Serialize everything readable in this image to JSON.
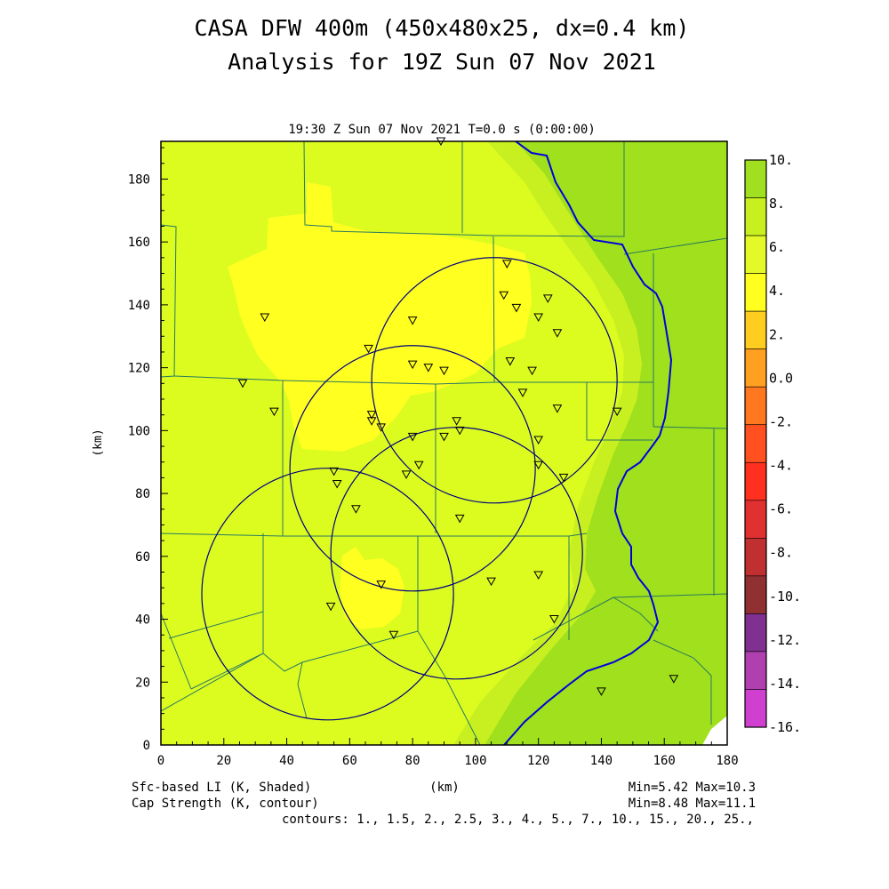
{
  "header": {
    "title_line1": "CASA DFW 400m (450x480x25, dx=0.4 km)",
    "title_line2": "Analysis for 19Z Sun 07 Nov 2021",
    "plot_label": "19:30 Z Sun 07 Nov 2021    T=0.0 s (0:00:00)"
  },
  "axes": {
    "x_ticks": [
      "0",
      "20",
      "40",
      "60",
      "80",
      "100",
      "120",
      "140",
      "160",
      "180"
    ],
    "y_ticks": [
      "0",
      "20",
      "40",
      "60",
      "80",
      "100",
      "120",
      "140",
      "160",
      "180"
    ],
    "x_unit": "(km)",
    "y_unit": "(km)"
  },
  "colorbar": {
    "labels": [
      "10.",
      "8.",
      "6.",
      "4.",
      "2.",
      "0.0",
      "-2.",
      "-4.",
      "-6.",
      "-8.",
      "-10.",
      "-12.",
      "-14.",
      "-16."
    ],
    "colors": [
      "#a0e020",
      "#c8f020",
      "#e4fa28",
      "#ffff20",
      "#ffcc20",
      "#ffa020",
      "#ff7820",
      "#ff5020",
      "#ff3020",
      "#e03030",
      "#c03030",
      "#903030",
      "#803090",
      "#b040b0",
      "#d040d0"
    ]
  },
  "footer": {
    "field1": "Sfc-based LI (K, Shaded)",
    "field2": "Cap Strength (K, contour)",
    "range1": "Min=5.42 Max=10.3",
    "range2": "Min=8.48 Max=11.1",
    "contours": "contours: 1., 1.5, 2., 2.5, 3., 4., 5., 7., 10., 15., 20., 25.,",
    "x_unit": "(km)"
  },
  "map": {
    "colors": {
      "green": "#a0e01c",
      "limegreen": "#c8f020",
      "yellowgreen": "#dcfc20",
      "yellow": "#ffff20",
      "boundary": "#2a7a60",
      "river": "#0000dd",
      "radar": "#000080"
    },
    "radar_circles": [
      {
        "cx": 106,
        "cy": 116,
        "r": 39
      },
      {
        "cx": 80,
        "cy": 88,
        "r": 39
      },
      {
        "cx": 94,
        "cy": 61,
        "r": 40
      },
      {
        "cx": 53,
        "cy": 48,
        "r": 40
      }
    ],
    "stations": [
      [
        89,
        192
      ],
      [
        110,
        153
      ],
      [
        109,
        143
      ],
      [
        113,
        139
      ],
      [
        120,
        136
      ],
      [
        123,
        142
      ],
      [
        126,
        131
      ],
      [
        80,
        135
      ],
      [
        33,
        136
      ],
      [
        66,
        126
      ],
      [
        80,
        121
      ],
      [
        85,
        120
      ],
      [
        90,
        119
      ],
      [
        111,
        122
      ],
      [
        118,
        119
      ],
      [
        115,
        112
      ],
      [
        126,
        107
      ],
      [
        26,
        115
      ],
      [
        36,
        106
      ],
      [
        67,
        105
      ],
      [
        67,
        103
      ],
      [
        70,
        101
      ],
      [
        94,
        103
      ],
      [
        80,
        98
      ],
      [
        90,
        98
      ],
      [
        95,
        100
      ],
      [
        120,
        97
      ],
      [
        145,
        106
      ],
      [
        82,
        89
      ],
      [
        78,
        86
      ],
      [
        120,
        89
      ],
      [
        128,
        85
      ],
      [
        55,
        87
      ],
      [
        56,
        83
      ],
      [
        62,
        75
      ],
      [
        95,
        72
      ],
      [
        120,
        54
      ],
      [
        105,
        52
      ],
      [
        70,
        51
      ],
      [
        54,
        44
      ],
      [
        125,
        40
      ],
      [
        74,
        35
      ],
      [
        140,
        17
      ],
      [
        163,
        21
      ]
    ]
  }
}
